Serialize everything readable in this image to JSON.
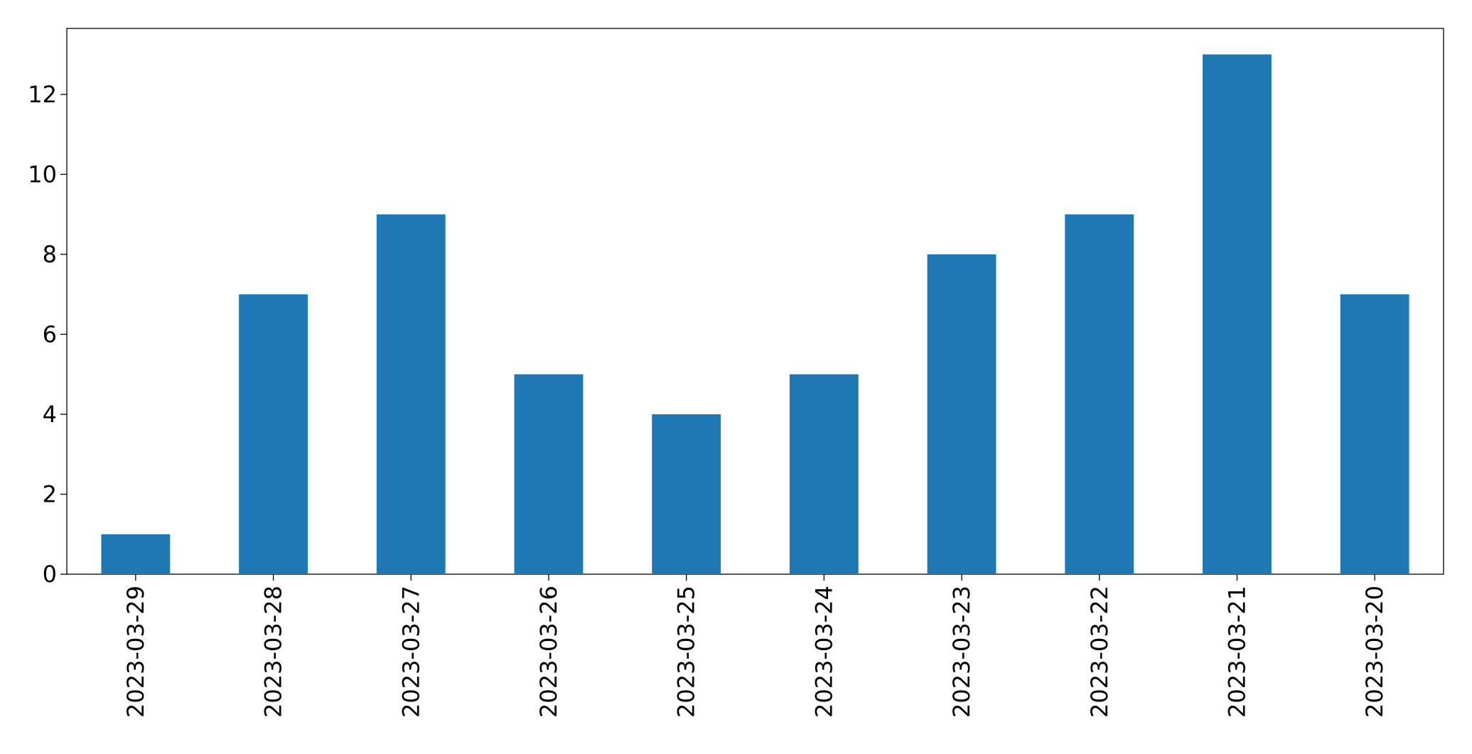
{
  "chart_data": {
    "type": "bar",
    "categories": [
      "2023-03-29",
      "2023-03-28",
      "2023-03-27",
      "2023-03-26",
      "2023-03-25",
      "2023-03-24",
      "2023-03-23",
      "2023-03-22",
      "2023-03-21",
      "2023-03-20"
    ],
    "values": [
      1,
      7,
      9,
      5,
      4,
      5,
      8,
      9,
      13,
      7
    ],
    "color": "#1f77b4",
    "ylim": [
      0,
      13.65
    ],
    "yticks": [
      0,
      2,
      4,
      6,
      8,
      10,
      12
    ],
    "grid": false
  }
}
